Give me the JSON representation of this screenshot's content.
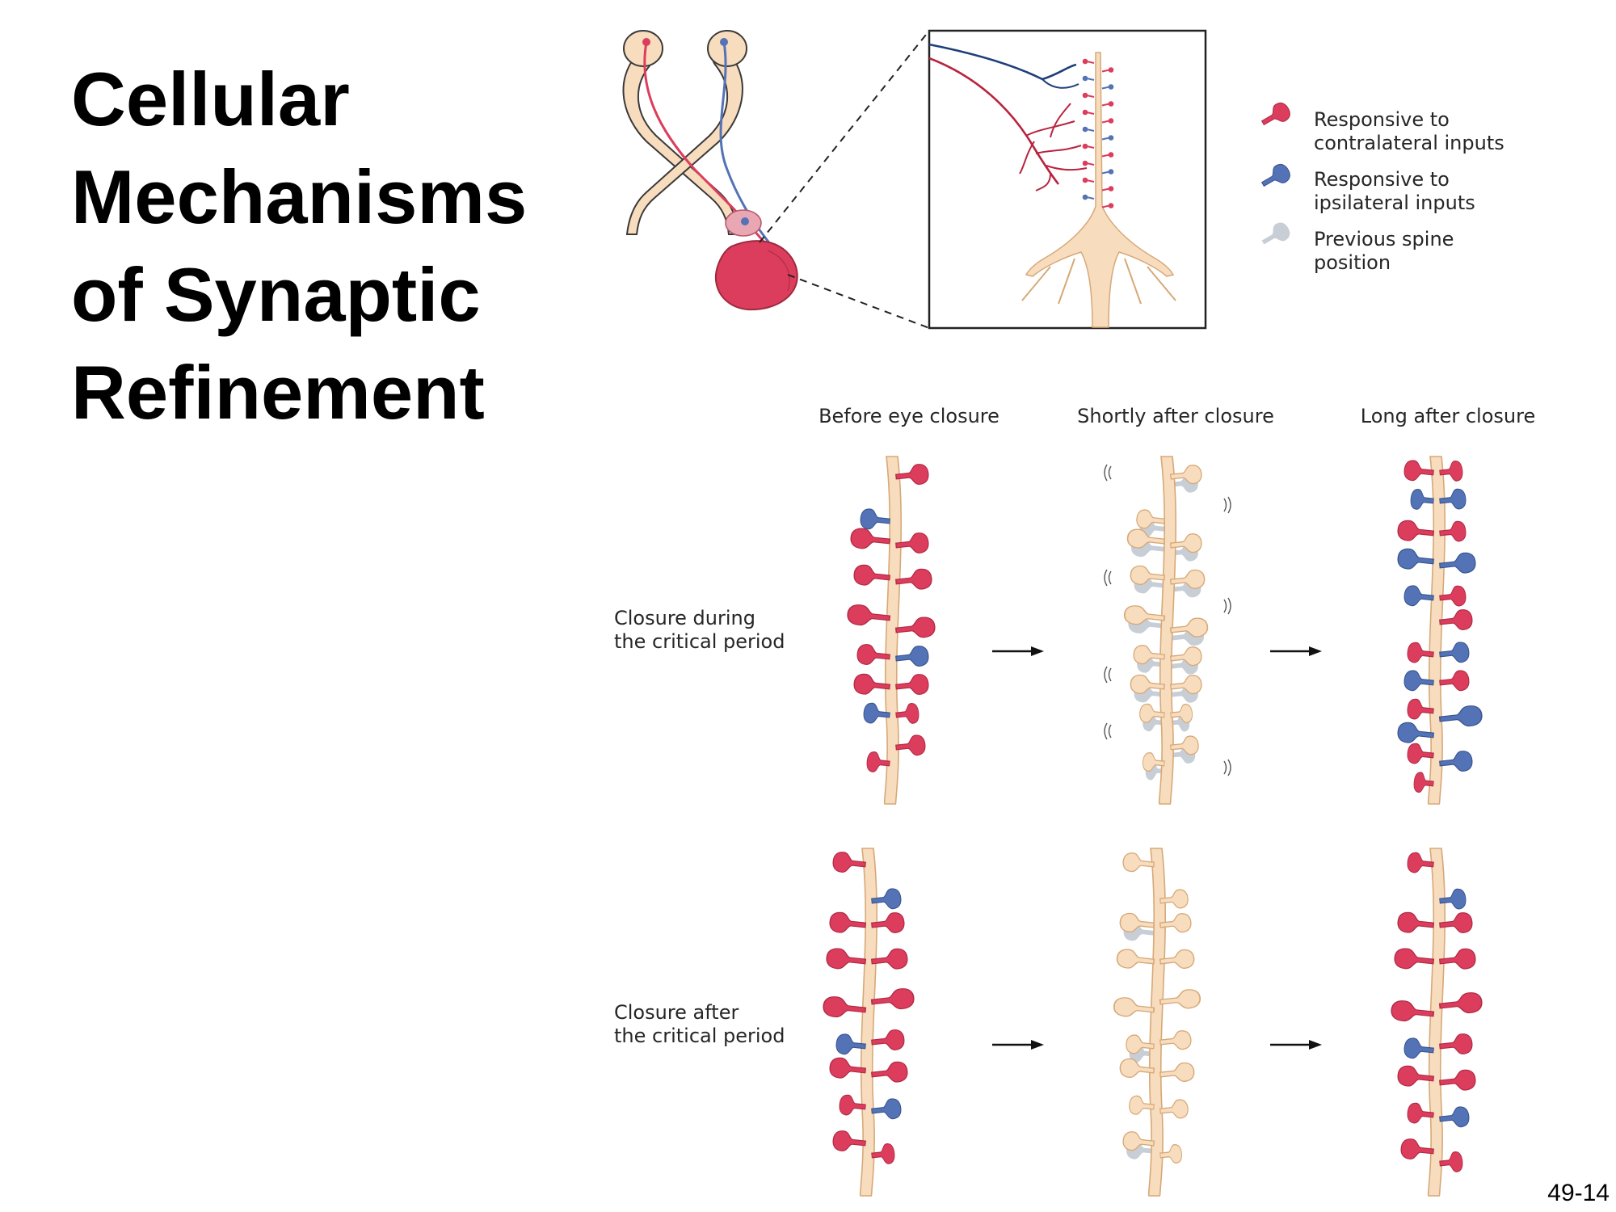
{
  "title": {
    "lines": [
      "Cellular",
      "Mechanisms",
      "of Synaptic",
      "Refinement"
    ]
  },
  "legend": {
    "items": [
      {
        "line1": "Responsive to",
        "line2": "contralateral inputs",
        "color": "#dc3d5c",
        "icon": "red-spine-icon"
      },
      {
        "line1": "Responsive to",
        "line2": "ipsilateral inputs",
        "color": "#5373b6",
        "icon": "blue-spine-icon"
      },
      {
        "line1": "Previous spine",
        "line2": "position",
        "color": "#c8ced6",
        "icon": "gray-spine-icon"
      }
    ]
  },
  "columns": [
    "Before eye closure",
    "Shortly after closure",
    "Long after closure"
  ],
  "rows": [
    {
      "line1": "Closure during",
      "line2": "the critical period"
    },
    {
      "line1": "Closure after",
      "line2": "the critical period"
    }
  ],
  "colors": {
    "contralateral": "#dc3d5c",
    "ipsilateral": "#5373b6",
    "previous": "#c8ced6",
    "dendrite": "#f8dcbe",
    "outline": "#d6a978"
  },
  "slide_number": "49-14"
}
